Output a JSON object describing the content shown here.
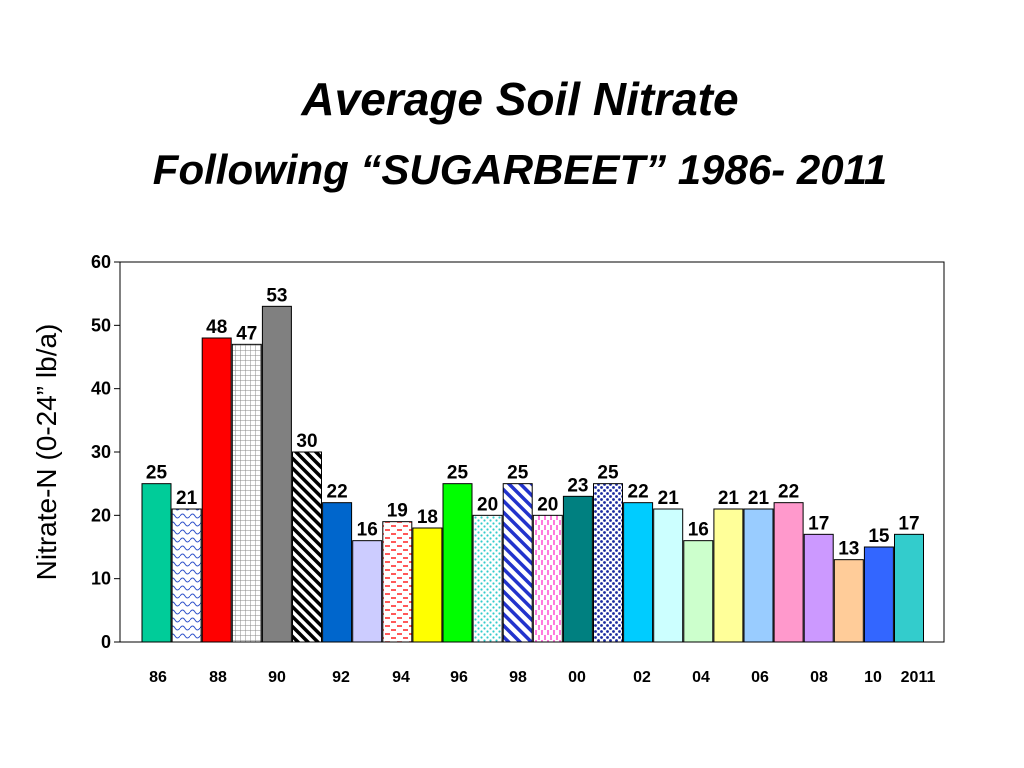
{
  "chart_data": {
    "type": "bar",
    "title": "Average Soil Nitrate",
    "subtitle": "Following “SUGARBEET” 1986- 2011",
    "ylabel": "Nitrate-N (0-24” lb/a)",
    "xlabel": "",
    "ylim": [
      0,
      60
    ],
    "yticks": [
      0,
      10,
      20,
      30,
      40,
      50,
      60
    ],
    "grid": false,
    "legend": "none",
    "categories": [
      "1986",
      "1987",
      "1988",
      "1989",
      "1990",
      "1991",
      "1992",
      "1993",
      "1994",
      "1995",
      "1996",
      "1997",
      "1998",
      "1999",
      "2000",
      "2001",
      "2002",
      "2003",
      "2004",
      "2005",
      "2006",
      "2007",
      "2008",
      "2009",
      "2010",
      "2011"
    ],
    "values": [
      25,
      21,
      48,
      47,
      53,
      30,
      22,
      16,
      19,
      18,
      25,
      20,
      25,
      20,
      23,
      25,
      22,
      21,
      16,
      21,
      21,
      22,
      17,
      13,
      15,
      17
    ],
    "x_tick_labels": [
      "86",
      "88",
      "90",
      "92",
      "94",
      "96",
      "98",
      "00",
      "02",
      "04",
      "06",
      "08",
      "10",
      "2011"
    ],
    "bar_colors": [
      "#00cc99",
      "#ffffff",
      "#ff0000",
      "#ffffff",
      "#808080",
      "#ffffff",
      "#0066cc",
      "#ccccff",
      "#ffffff",
      "#ffff00",
      "#00ff00",
      "#ffffff",
      "#ffffff",
      "#ffffff",
      "#008080",
      "#ffffff",
      "#00ccff",
      "#ccffff",
      "#ccffcc",
      "#ffff99",
      "#99ccff",
      "#ff99cc",
      "#cc99ff",
      "#ffcc99",
      "#3366ff",
      "#33cccc"
    ],
    "bar_patterns": [
      "solid",
      "wave-blue",
      "solid",
      "grid-gray",
      "solid",
      "diag-black",
      "solid",
      "solid",
      "dash-red",
      "solid",
      "solid",
      "dots-cyan",
      "diag-blue",
      "dash-magenta",
      "solid",
      "dots-navy",
      "solid",
      "solid",
      "solid",
      "solid",
      "solid",
      "solid",
      "solid",
      "solid",
      "solid",
      "solid"
    ]
  }
}
